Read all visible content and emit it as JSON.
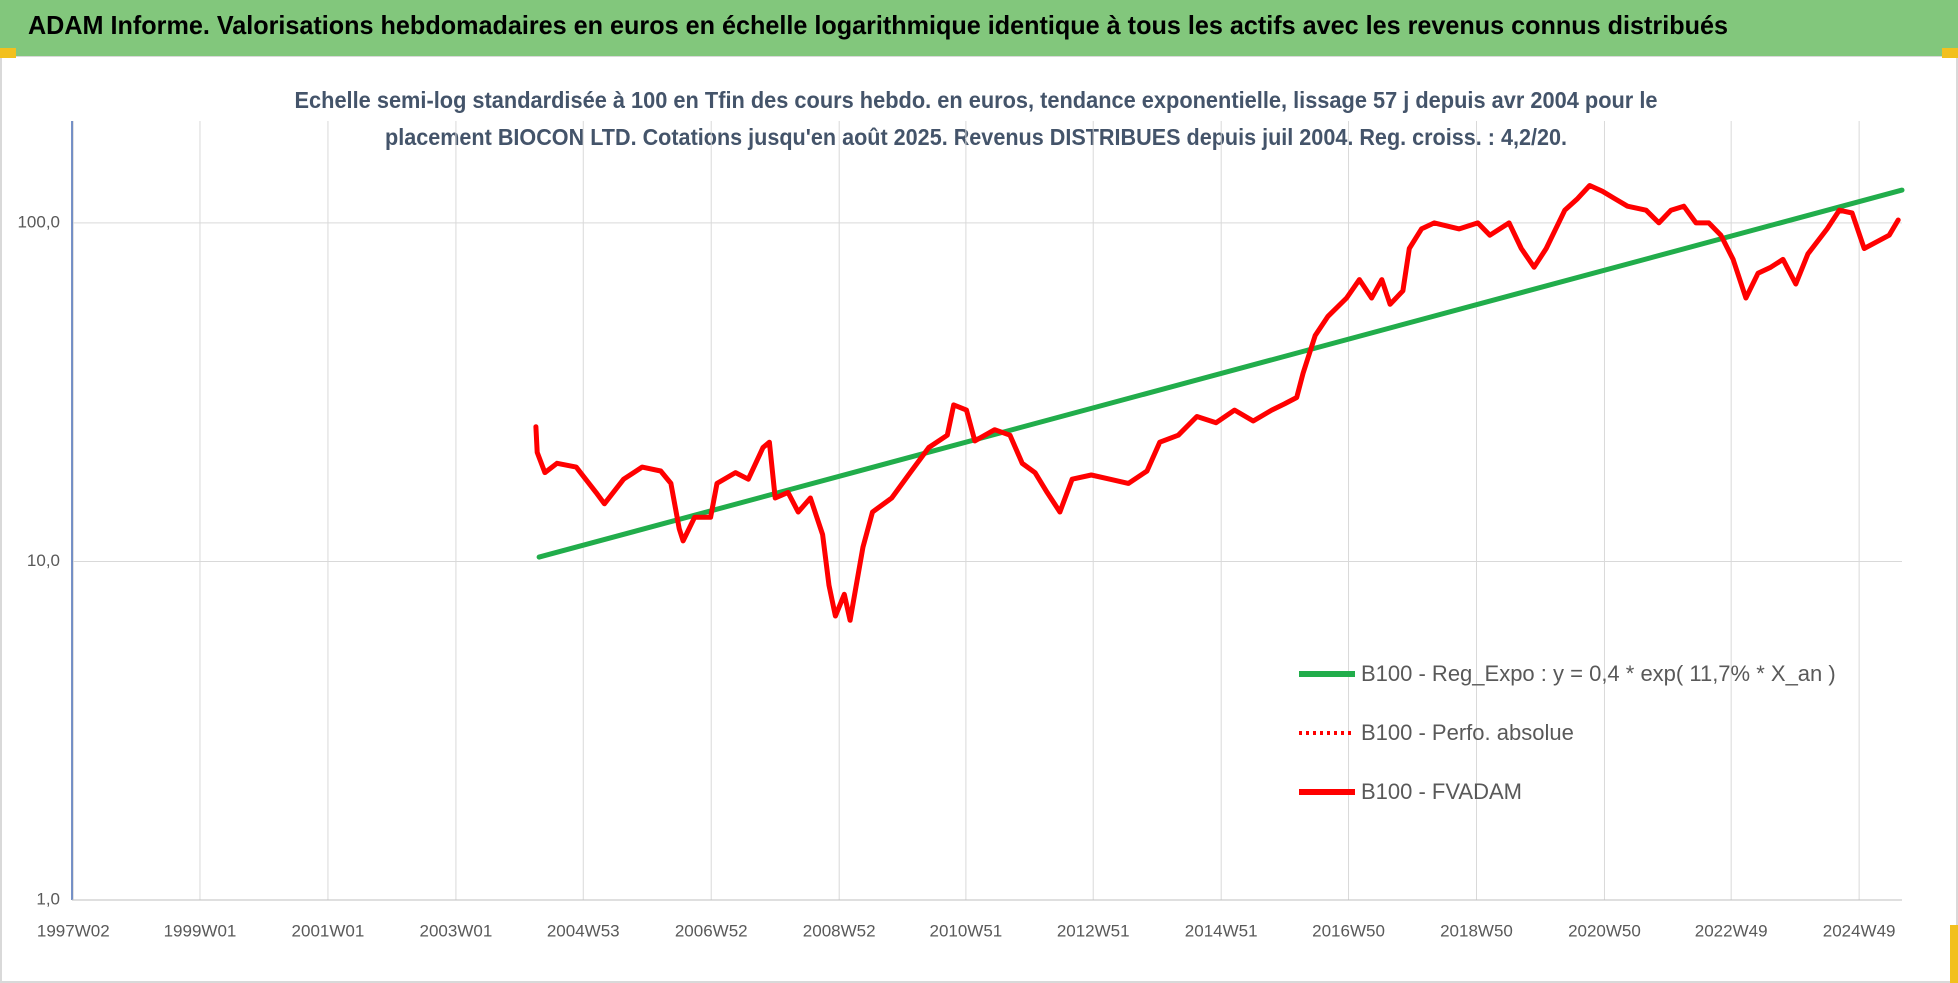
{
  "chart_data": {
    "type": "line",
    "title": "ADAM Informe. Valorisations hebdomadaires en euros en échelle logarithmique identique à tous les actifs avec les revenus connus distribués",
    "subtitle": [
      "Echelle semi-log standardisée à 100 en Tfin des cours hebdo. en euros, tendance exponentielle, lissage 57 j depuis avr 2004 pour le",
      "placement BIOCON LTD. Cotations jusqu'en août 2025. Revenus DISTRIBUES depuis juil 2004. Reg. croiss. : 4,2/20."
    ],
    "log_y": true,
    "grid": true,
    "legend": "lower right",
    "xlim": [
      1997.0,
      2025.6
    ],
    "xticks": [
      {
        "value": 1997.02,
        "label": "1997W02"
      },
      {
        "value": 1999.0,
        "label": "1999W01"
      },
      {
        "value": 2001.0,
        "label": "2001W01"
      },
      {
        "value": 2003.0,
        "label": "2003W01"
      },
      {
        "value": 2004.99,
        "label": "2004W53"
      },
      {
        "value": 2006.99,
        "label": "2006W52"
      },
      {
        "value": 2008.99,
        "label": "2008W52"
      },
      {
        "value": 2010.97,
        "label": "2010W51"
      },
      {
        "value": 2012.96,
        "label": "2012W51"
      },
      {
        "value": 2014.96,
        "label": "2014W51"
      },
      {
        "value": 2016.95,
        "label": "2016W50"
      },
      {
        "value": 2018.95,
        "label": "2018W50"
      },
      {
        "value": 2020.95,
        "label": "2020W50"
      },
      {
        "value": 2022.93,
        "label": "2022W49"
      },
      {
        "value": 2024.93,
        "label": "2024W49"
      }
    ],
    "ylim": [
      1,
      200
    ],
    "yticks": [
      {
        "value": 1,
        "label": "1,0"
      },
      {
        "value": 10,
        "label": "10,0"
      },
      {
        "value": 100,
        "label": "100,0"
      }
    ],
    "series": [
      {
        "name": "B100 - Reg_Expo : y = 0,4 * exp( 11,7% *  X_an )",
        "color": "#21ad4b",
        "style": "solid",
        "x": [
          2004.3,
          2025.6
        ],
        "values": [
          10.3,
          125
        ]
      },
      {
        "name": "B100 - Perfo. absolue",
        "color": "#ff0000",
        "style": "dotted",
        "x": [
          2004.25,
          2004.27,
          2004.39,
          2004.58,
          2004.88,
          2005.19,
          2005.32,
          2005.62,
          2005.91,
          2006.2,
          2006.36,
          2006.49,
          2006.55,
          2006.73,
          2006.98,
          2007.08,
          2007.37,
          2007.57,
          2007.8,
          2007.9,
          2007.99,
          2008.19,
          2008.35,
          2008.54,
          2008.73,
          2008.83,
          2008.93,
          2009.07,
          2009.16,
          2009.36,
          2009.51,
          2009.81,
          2010.1,
          2010.39,
          2010.68,
          2010.78,
          2010.98,
          2011.11,
          2011.42,
          2011.66,
          2011.85,
          2012.05,
          2012.24,
          2012.44,
          2012.63,
          2012.93,
          2013.22,
          2013.51,
          2013.8,
          2014.0,
          2014.29,
          2014.58,
          2014.88,
          2015.17,
          2015.46,
          2015.75,
          2015.95,
          2016.14,
          2016.24,
          2016.43,
          2016.63,
          2016.92,
          2017.12,
          2017.31,
          2017.47,
          2017.6,
          2017.8,
          2017.9,
          2018.09,
          2018.29,
          2018.68,
          2018.97,
          2019.16,
          2019.46,
          2019.65,
          2019.85,
          2020.04,
          2020.33,
          2020.53,
          2020.72,
          2020.92,
          2021.11,
          2021.31,
          2021.6,
          2021.8,
          2021.99,
          2022.19,
          2022.38,
          2022.58,
          2022.77,
          2022.96,
          2023.16,
          2023.35,
          2023.55,
          2023.74,
          2023.94,
          2024.13,
          2024.43,
          2024.62,
          2024.82,
          2025.01,
          2025.21,
          2025.4,
          2025.54
        ],
        "values": [
          25,
          21,
          18.3,
          19.5,
          19,
          16,
          14.8,
          17.5,
          19,
          18.5,
          17,
          12.5,
          11.5,
          13.5,
          13.5,
          17,
          18.3,
          17.5,
          21.7,
          22.5,
          15.4,
          16,
          14,
          15.4,
          12,
          8.5,
          6.9,
          8,
          6.7,
          11,
          14,
          15.4,
          18.3,
          21.7,
          23.6,
          29,
          28,
          22.7,
          24.5,
          23.6,
          19.5,
          18.3,
          16,
          14,
          17.5,
          18,
          17.5,
          17,
          18.5,
          22.5,
          23.6,
          26.8,
          25.7,
          28,
          26,
          28,
          29.2,
          30.5,
          36,
          46.5,
          53,
          60,
          68,
          60,
          68,
          57.5,
          63,
          84,
          96,
          100,
          96,
          100,
          92,
          100,
          84,
          74,
          84,
          109,
          118,
          129,
          124,
          118,
          112,
          109,
          100,
          109,
          112,
          100,
          100,
          92,
          78,
          60,
          71,
          74,
          78,
          66,
          81,
          96,
          109,
          107,
          84,
          88,
          92,
          102
        ]
      },
      {
        "name": "B100 - FVADAM",
        "color": "#ff0000",
        "style": "solid",
        "x": [
          2004.25,
          2004.27,
          2004.39,
          2004.58,
          2004.88,
          2005.19,
          2005.32,
          2005.62,
          2005.91,
          2006.2,
          2006.36,
          2006.49,
          2006.55,
          2006.73,
          2006.98,
          2007.08,
          2007.37,
          2007.57,
          2007.8,
          2007.9,
          2007.99,
          2008.19,
          2008.35,
          2008.54,
          2008.73,
          2008.83,
          2008.93,
          2009.07,
          2009.16,
          2009.36,
          2009.51,
          2009.81,
          2010.1,
          2010.39,
          2010.68,
          2010.78,
          2010.98,
          2011.11,
          2011.42,
          2011.66,
          2011.85,
          2012.05,
          2012.24,
          2012.44,
          2012.63,
          2012.93,
          2013.22,
          2013.51,
          2013.8,
          2014.0,
          2014.29,
          2014.58,
          2014.88,
          2015.17,
          2015.46,
          2015.75,
          2015.95,
          2016.14,
          2016.24,
          2016.43,
          2016.63,
          2016.92,
          2017.12,
          2017.31,
          2017.47,
          2017.6,
          2017.8,
          2017.9,
          2018.09,
          2018.29,
          2018.68,
          2018.97,
          2019.16,
          2019.46,
          2019.65,
          2019.85,
          2020.04,
          2020.33,
          2020.53,
          2020.72,
          2020.92,
          2021.11,
          2021.31,
          2021.6,
          2021.8,
          2021.99,
          2022.19,
          2022.38,
          2022.58,
          2022.77,
          2022.96,
          2023.16,
          2023.35,
          2023.55,
          2023.74,
          2023.94,
          2024.13,
          2024.43,
          2024.62,
          2024.82,
          2025.01,
          2025.21,
          2025.4,
          2025.54
        ],
        "values": [
          25,
          21,
          18.3,
          19.5,
          19,
          16,
          14.8,
          17.5,
          19,
          18.5,
          17,
          12.5,
          11.5,
          13.5,
          13.5,
          17,
          18.3,
          17.5,
          21.7,
          22.5,
          15.4,
          16,
          14,
          15.4,
          12,
          8.5,
          6.9,
          8,
          6.7,
          11,
          14,
          15.4,
          18.3,
          21.7,
          23.6,
          29,
          28,
          22.7,
          24.5,
          23.6,
          19.5,
          18.3,
          16,
          14,
          17.5,
          18,
          17.5,
          17,
          18.5,
          22.5,
          23.6,
          26.8,
          25.7,
          28,
          26,
          28,
          29.2,
          30.5,
          36,
          46.5,
          53,
          60,
          68,
          60,
          68,
          57.5,
          63,
          84,
          96,
          100,
          96,
          100,
          92,
          100,
          84,
          74,
          84,
          109,
          118,
          129,
          124,
          118,
          112,
          109,
          100,
          109,
          112,
          100,
          100,
          92,
          78,
          60,
          71,
          74,
          78,
          66,
          81,
          96,
          109,
          107,
          84,
          88,
          92,
          102
        ]
      }
    ]
  }
}
